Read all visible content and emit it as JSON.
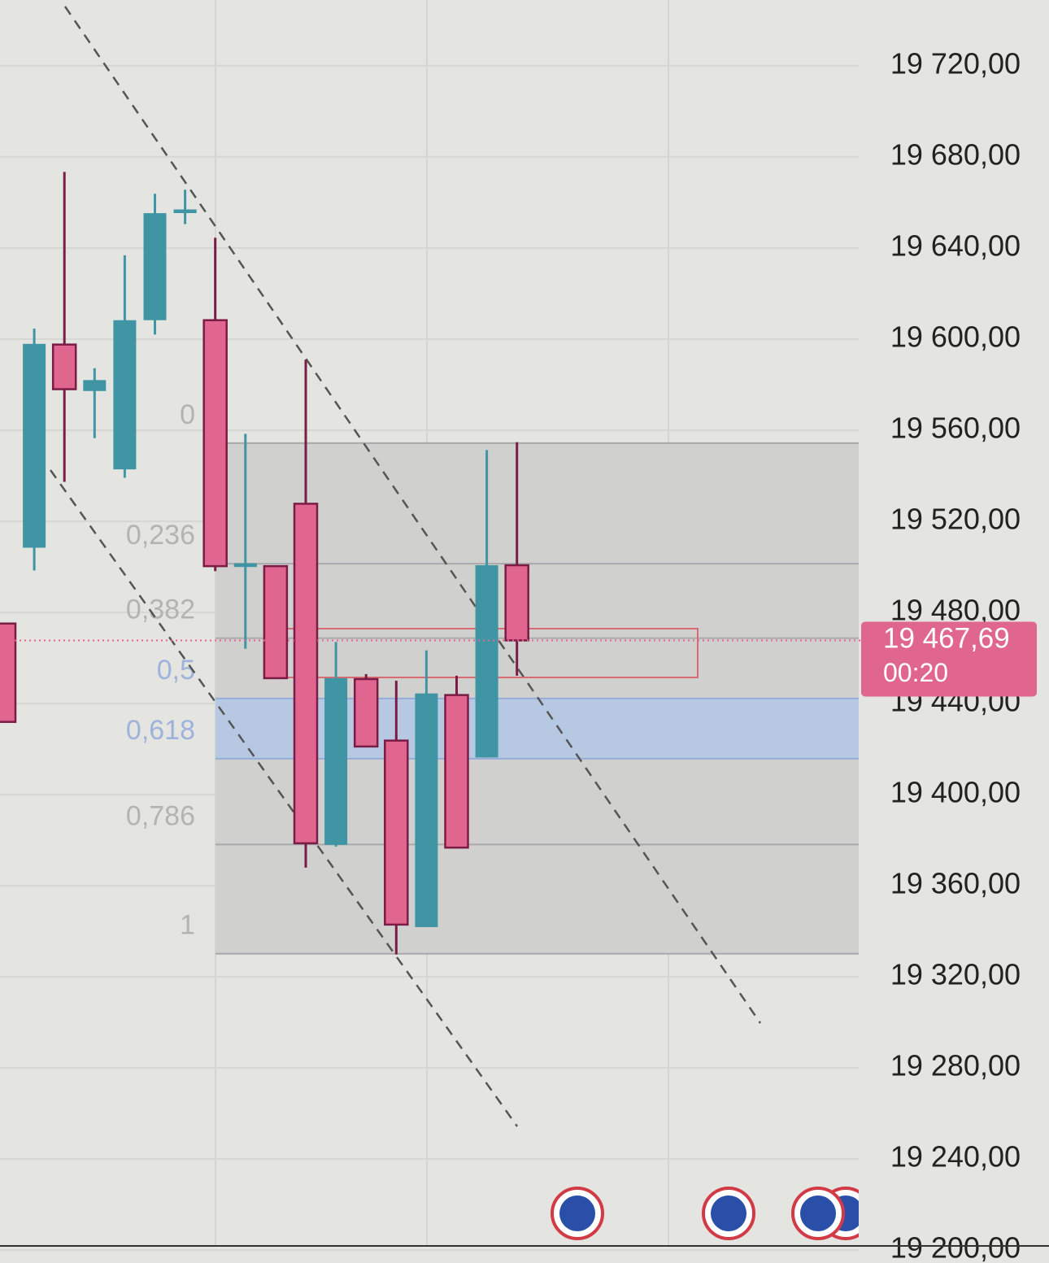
{
  "chart_data": {
    "type": "candlestick",
    "open": [
      19475.1,
      19508.4,
      19597.6,
      19577.2,
      19542.8,
      19608.3,
      19656.4,
      19608.3,
      19501.0,
      19500.3,
      19527.7,
      19377.9,
      19450.7,
      19423.7,
      19341.8,
      19443.7,
      19416.3,
      19500.7
    ],
    "high": [
      19475.1,
      19604.6,
      19673.4,
      19587.2,
      19636.8,
      19663.8,
      19665.6,
      19644.5,
      19558.4,
      19500.3,
      19590.9,
      19467.0,
      19452.9,
      19450.0,
      19463.3,
      19452.2,
      19551.3,
      19554.7
    ],
    "low": [
      19431.9,
      19498.4,
      19537.3,
      19556.5,
      19539.1,
      19602.0,
      19650.5,
      19498.1,
      19464.0,
      19451.1,
      19367.9,
      19377.2,
      19421.1,
      19329.8,
      19341.8,
      19376.7,
      19416.3,
      19452.2
    ],
    "close": [
      19431.9,
      19597.9,
      19578.0,
      19582.0,
      19608.3,
      19655.3,
      19656.4,
      19500.3,
      19501.0,
      19451.1,
      19378.6,
      19451.1,
      19421.1,
      19342.9,
      19444.4,
      19376.7,
      19500.7,
      19467.69
    ],
    "up_color": "#3f95a3",
    "down_color": "#e0668f",
    "down_wick_color": "#7a1c45",
    "ylim": [
      19194.3,
      19748.9
    ],
    "yticks": [
      {
        "value": 19720,
        "label": "19 720,00"
      },
      {
        "value": 19680,
        "label": "19 680,00"
      },
      {
        "value": 19640,
        "label": "19 640,00"
      },
      {
        "value": 19600,
        "label": "19 600,00"
      },
      {
        "value": 19560,
        "label": "19 560,00"
      },
      {
        "value": 19520,
        "label": "19 520,00"
      },
      {
        "value": 19480,
        "label": "19 480,00"
      },
      {
        "value": 19440,
        "label": "19 440,00"
      },
      {
        "value": 19400,
        "label": "19 400,00"
      },
      {
        "value": 19360,
        "label": "19 360,00"
      },
      {
        "value": 19320,
        "label": "19 320,00"
      },
      {
        "value": 19280,
        "label": "19 280,00"
      },
      {
        "value": 19240,
        "label": "19 240,00"
      },
      {
        "value": 19200,
        "label": "19 200,00"
      }
    ],
    "grid": true,
    "fib": {
      "start": 19554.3,
      "end": 19330.1,
      "levels": [
        {
          "value": 0,
          "label": "0"
        },
        {
          "value": 0.236,
          "label": "0,236"
        },
        {
          "value": 0.382,
          "label": "0,382"
        },
        {
          "value": 0.5,
          "label": "0,5"
        },
        {
          "value": 0.618,
          "label": "0,618"
        },
        {
          "value": 0.786,
          "label": "0,786"
        },
        {
          "value": 1,
          "label": "1"
        }
      ]
    },
    "last_price": {
      "value": 19467.69,
      "label": "19 467,69",
      "timer": "00:20"
    }
  }
}
